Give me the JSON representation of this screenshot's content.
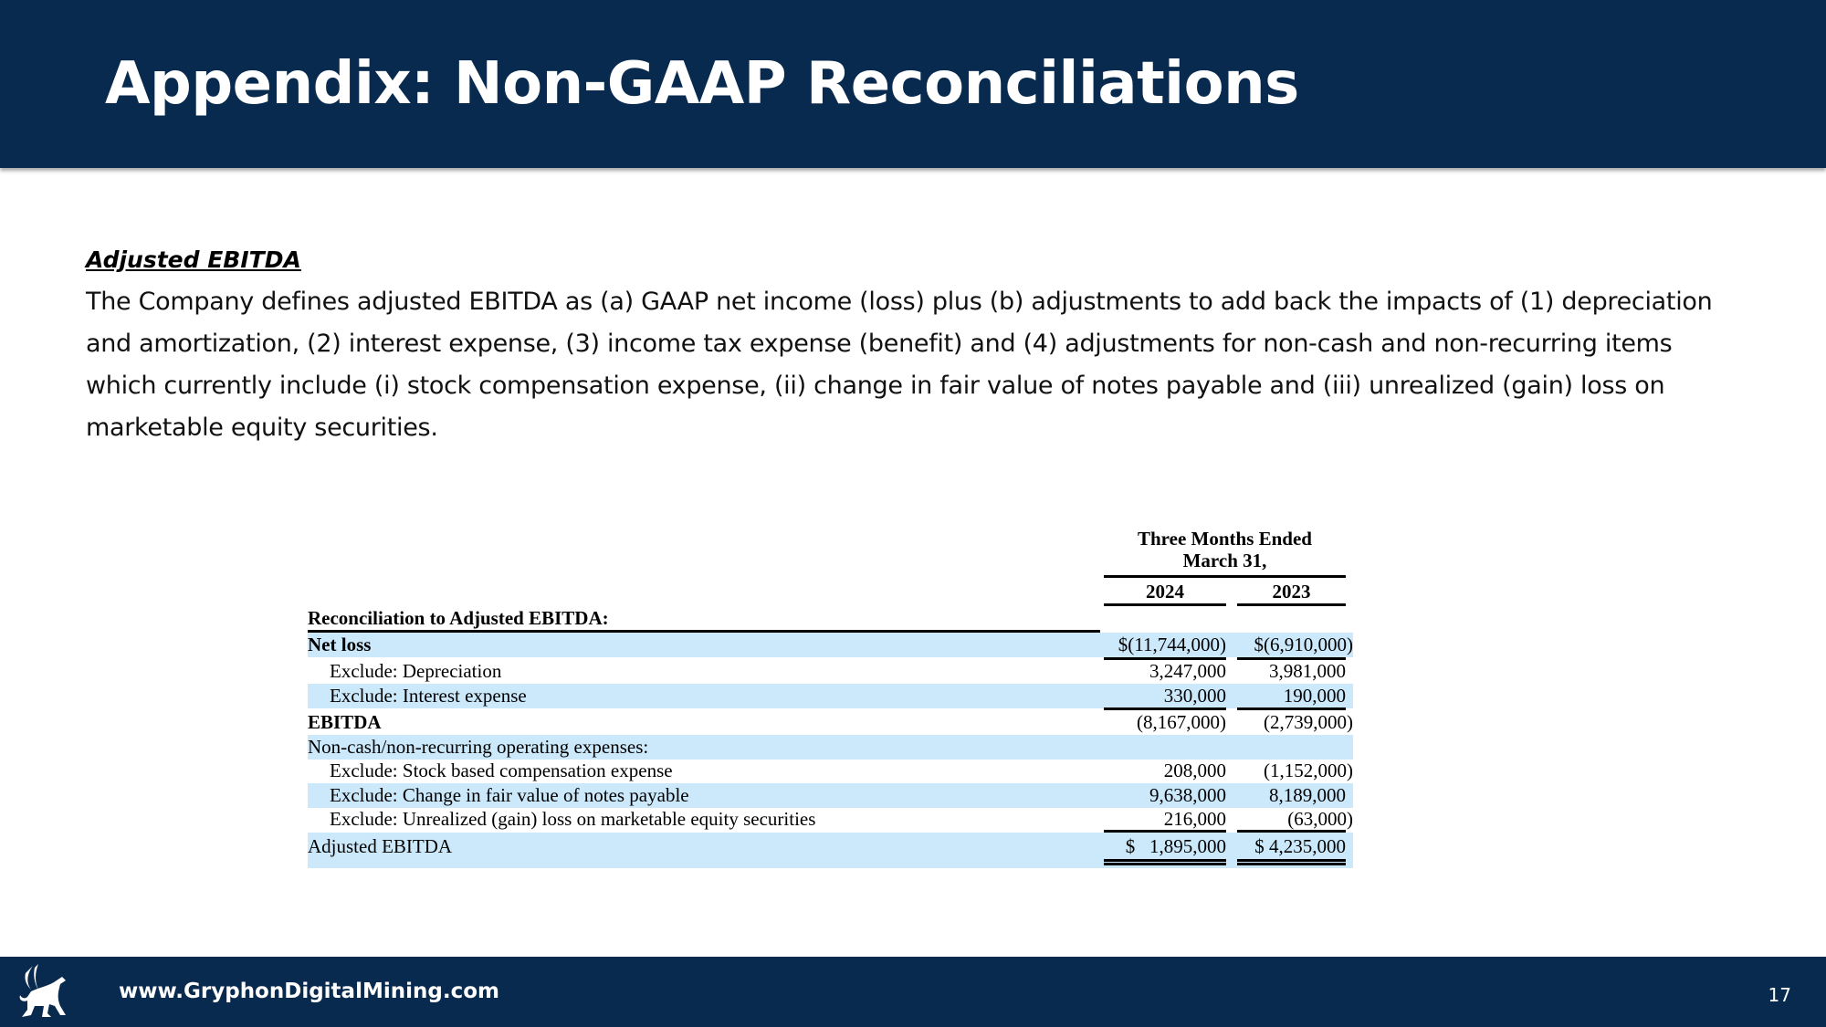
{
  "header": {
    "title": "Appendix: Non-GAAP Reconciliations"
  },
  "section": {
    "heading": "Adjusted EBITDA",
    "description": "The Company defines adjusted EBITDA as (a) GAAP net income (loss) plus (b) adjustments to add back the impacts of (1) depreciation and amortization, (2) interest expense, (3) income tax expense (benefit) and (4) adjustments for non-cash and non-recurring items which currently include (i) stock compensation expense, (ii) change in fair value of notes payable and (iii) unrealized (gain) loss on marketable equity securities."
  },
  "table": {
    "period_line1": "Three Months Ended",
    "period_line2": "March 31,",
    "col1": "2024",
    "col2": "2023",
    "caption": "Reconciliation to Adjusted EBITDA:",
    "rows": [
      {
        "label": "Net loss",
        "v1": "$(11,744,000)",
        "v2": "$(6,910,000)"
      },
      {
        "label": "Exclude: Depreciation",
        "v1": "3,247,000",
        "v2": "3,981,000"
      },
      {
        "label": "Exclude: Interest expense",
        "v1": "330,000",
        "v2": "190,000"
      },
      {
        "label": "EBITDA",
        "v1": "(8,167,000)",
        "v2": "(2,739,000)"
      },
      {
        "label": "Non-cash/non-recurring operating expenses:",
        "v1": "",
        "v2": ""
      },
      {
        "label": "Exclude: Stock based compensation expense",
        "v1": "208,000",
        "v2": "(1,152,000)"
      },
      {
        "label": "Exclude: Change in fair value of notes payable",
        "v1": "9,638,000",
        "v2": "8,189,000"
      },
      {
        "label": "Exclude: Unrealized (gain) loss on marketable equity securities",
        "v1": "216,000",
        "v2": "(63,000)"
      },
      {
        "label": "Adjusted EBITDA",
        "v1": "$   1,895,000",
        "v2": "$ 4,235,000"
      }
    ]
  },
  "footer": {
    "url": "www.GryphonDigitalMining.com",
    "page": "17",
    "logo_icon": "gryphon-logo-icon"
  },
  "colors": {
    "navy": "#082a4e",
    "row_blue": "#cce9fc"
  }
}
